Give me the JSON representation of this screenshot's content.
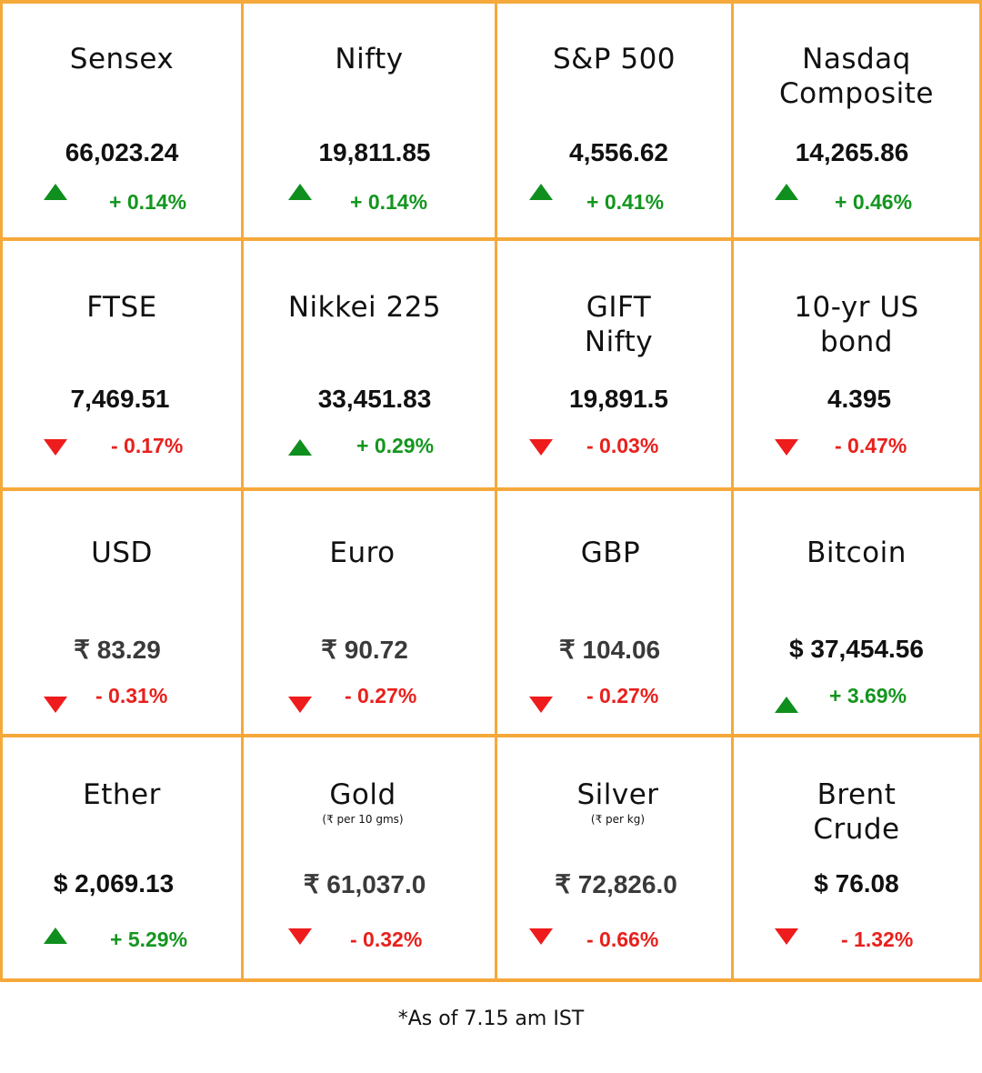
{
  "accent_color": "#f5a93a",
  "up_color": "#14961f",
  "down_color": "#e8201c",
  "tiles": [
    {
      "name": "Sensex",
      "name2": "",
      "sub": "",
      "value": "66,023.24",
      "change": "+ 0.14%",
      "direction": "up",
      "arrow_icon": "triangle-up-icon"
    },
    {
      "name": "Nifty",
      "name2": "",
      "sub": "",
      "value": "19,811.85",
      "change": "+ 0.14%",
      "direction": "up",
      "arrow_icon": "triangle-up-icon"
    },
    {
      "name": "S&P 500",
      "name2": "",
      "sub": "",
      "value": "4,556.62",
      "change": "+ 0.41%",
      "direction": "up",
      "arrow_icon": "triangle-up-icon"
    },
    {
      "name": "Nasdaq",
      "name2": "Composite",
      "sub": "",
      "value": "14,265.86",
      "change": "+ 0.46%",
      "direction": "up",
      "arrow_icon": "triangle-up-icon"
    },
    {
      "name": "FTSE",
      "name2": "",
      "sub": "",
      "value": "7,469.51",
      "change": "- 0.17%",
      "direction": "down",
      "arrow_icon": "triangle-down-icon"
    },
    {
      "name": "Nikkei 225",
      "name2": "",
      "sub": "",
      "value": "33,451.83",
      "change": "+ 0.29%",
      "direction": "up",
      "arrow_icon": "triangle-up-icon"
    },
    {
      "name": "GIFT",
      "name2": "Nifty",
      "sub": "",
      "value": "19,891.5",
      "change": "- 0.03%",
      "direction": "down",
      "arrow_icon": "triangle-down-icon"
    },
    {
      "name": "10-yr US",
      "name2": "bond",
      "sub": "",
      "value": "4.395",
      "change": "- 0.47%",
      "direction": "down",
      "arrow_icon": "triangle-down-icon"
    },
    {
      "name": "USD",
      "name2": "",
      "sub": "",
      "value": "₹ 83.29",
      "change": "- 0.31%",
      "direction": "down",
      "arrow_icon": "triangle-down-icon"
    },
    {
      "name": "Euro",
      "name2": "",
      "sub": "",
      "value": "₹ 90.72",
      "change": "- 0.27%",
      "direction": "down",
      "arrow_icon": "triangle-down-icon"
    },
    {
      "name": "GBP",
      "name2": "",
      "sub": "",
      "value": "₹ 104.06",
      "change": "- 0.27%",
      "direction": "down",
      "arrow_icon": "triangle-down-icon"
    },
    {
      "name": "Bitcoin",
      "name2": "",
      "sub": "",
      "value": "$ 37,454.56",
      "change": "+ 3.69%",
      "direction": "up",
      "arrow_icon": "triangle-up-icon"
    },
    {
      "name": "Ether",
      "name2": "",
      "sub": "",
      "value": "$ 2,069.13",
      "change": "+ 5.29%",
      "direction": "up",
      "arrow_icon": "triangle-up-icon"
    },
    {
      "name": "Gold",
      "name2": "",
      "sub": "(₹ per 10 gms)",
      "value": "₹ 61,037.0",
      "change": "- 0.32%",
      "direction": "down",
      "arrow_icon": "triangle-down-icon"
    },
    {
      "name": "Silver",
      "name2": "",
      "sub": "(₹ per kg)",
      "value": "₹ 72,826.0",
      "change": "- 0.66%",
      "direction": "down",
      "arrow_icon": "triangle-down-icon"
    },
    {
      "name": "Brent",
      "name2": "Crude",
      "sub": "",
      "value": "$ 76.08",
      "change": "- 1.32%",
      "direction": "down",
      "arrow_icon": "triangle-down-icon"
    }
  ],
  "footer": "*As of 7.15 am IST"
}
